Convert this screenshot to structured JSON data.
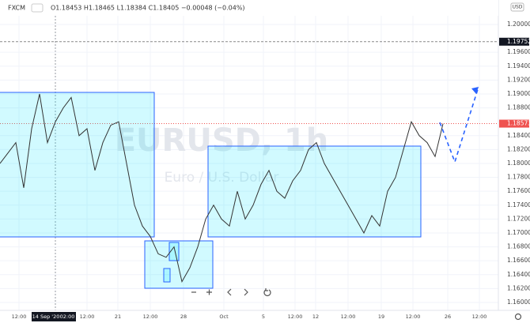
{
  "header": {
    "symbol": "FXCM",
    "ohlc": "O1.18453 H1.18465 L1.18384 C1.18405 −0.00048 (−0.04%)"
  },
  "watermark": {
    "title": "EURUSD, 1h",
    "subtitle": "Euro / U.S. Dollar"
  },
  "price_axis": {
    "currency": "USD",
    "ylim": [
      1.15886,
      1.20352
    ],
    "ticks": [
      {
        "value": 1.2,
        "label": "1.20000"
      },
      {
        "value": 1.196,
        "label": "1.19600"
      },
      {
        "value": 1.194,
        "label": "1.19400"
      },
      {
        "value": 1.192,
        "label": "1.19200"
      },
      {
        "value": 1.19,
        "label": "1.19000"
      },
      {
        "value": 1.188,
        "label": "1.18800"
      },
      {
        "value": 1.184,
        "label": "1.18400"
      },
      {
        "value": 1.182,
        "label": "1.18200"
      },
      {
        "value": 1.18,
        "label": "1.18000"
      },
      {
        "value": 1.178,
        "label": "1.17800"
      },
      {
        "value": 1.176,
        "label": "1.17600"
      },
      {
        "value": 1.174,
        "label": "1.17400"
      },
      {
        "value": 1.172,
        "label": "1.17200"
      },
      {
        "value": 1.17,
        "label": "1.17000"
      },
      {
        "value": 1.168,
        "label": "1.16800"
      },
      {
        "value": 1.166,
        "label": "1.16600"
      },
      {
        "value": 1.164,
        "label": "1.16400"
      },
      {
        "value": 1.162,
        "label": "1.16200"
      },
      {
        "value": 1.16,
        "label": "1.16000"
      }
    ],
    "alert": {
      "value": 1.19752,
      "label": "1.19752"
    },
    "last": {
      "value": 1.18573,
      "label": "1.18573"
    }
  },
  "time_axis": [
    "12:00",
    "14 Sep '20",
    "02:00",
    "12:00",
    "21",
    "12:00",
    "28",
    "Oct",
    "5",
    "12:00",
    "12",
    "12:00",
    "19",
    "12:00",
    "26",
    "12:00"
  ],
  "closes": [
    1.18,
    1.1815,
    1.183,
    1.1765,
    1.185,
    1.19,
    1.183,
    1.186,
    1.188,
    1.1895,
    1.184,
    1.185,
    1.179,
    1.183,
    1.1855,
    1.186,
    1.18,
    1.174,
    1.171,
    1.1695,
    1.167,
    1.1665,
    1.168,
    1.163,
    1.165,
    1.168,
    1.172,
    1.174,
    1.172,
    1.171,
    1.176,
    1.172,
    1.174,
    1.177,
    1.179,
    1.176,
    1.175,
    1.1775,
    1.179,
    1.182,
    1.183,
    1.18,
    1.178,
    1.176,
    1.174,
    1.172,
    1.17,
    1.1725,
    1.171,
    1.176,
    1.178,
    1.182,
    1.186,
    1.184,
    1.183,
    1.181,
    1.1857
  ]
}
